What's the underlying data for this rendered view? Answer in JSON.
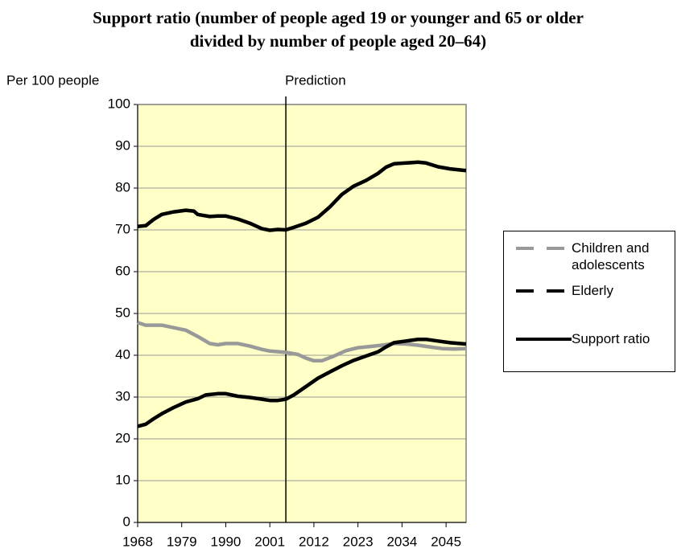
{
  "chart_data": {
    "type": "line",
    "title": "Support ratio (number of people aged 19 or younger and 65 or older divided by number of people aged 20–64)",
    "y_label": "Per 100 people",
    "annotation": "Prediction",
    "annotation_x": 2005,
    "xlim": [
      1968,
      2050
    ],
    "xticks": [
      1968,
      1979,
      1990,
      2001,
      2012,
      2023,
      2034,
      2045
    ],
    "ylim": [
      0,
      100
    ],
    "yticks": [
      0,
      10,
      20,
      30,
      40,
      50,
      60,
      70,
      80,
      90,
      100
    ],
    "grid": true,
    "legend": "right",
    "series": [
      {
        "name": "Children and adolescents",
        "color": "#999999",
        "x": [
          1968,
          1970,
          1974,
          1977,
          1980,
          1983,
          1986,
          1988,
          1990,
          1993,
          1996,
          1999,
          2001,
          2005,
          2008,
          2010,
          2012,
          2014,
          2017,
          2020,
          2023,
          2026,
          2029,
          2032,
          2035,
          2038,
          2041,
          2044,
          2047,
          2050
        ],
        "values": [
          47.8,
          47.2,
          47.2,
          46.6,
          46,
          44.5,
          42.8,
          42.5,
          42.8,
          42.8,
          42.2,
          41.4,
          41,
          40.7,
          40.2,
          39.3,
          38.7,
          38.7,
          39.8,
          41.1,
          41.8,
          42.1,
          42.4,
          42.8,
          42.7,
          42.4,
          42,
          41.6,
          41.5,
          41.6
        ]
      },
      {
        "name": "Elderly",
        "color": "#000000",
        "x": [
          1968,
          1970,
          1972,
          1974,
          1977,
          1980,
          1983,
          1985,
          1988,
          1990,
          1993,
          1996,
          1999,
          2001,
          2003,
          2005,
          2007,
          2010,
          2013,
          2016,
          2019,
          2022,
          2025,
          2028,
          2030,
          2032,
          2035,
          2038,
          2040,
          2043,
          2046,
          2050
        ],
        "values": [
          23,
          23.5,
          24.8,
          26,
          27.5,
          28.8,
          29.6,
          30.5,
          30.8,
          30.8,
          30.2,
          29.9,
          29.5,
          29.2,
          29.2,
          29.5,
          30.5,
          32.5,
          34.5,
          36,
          37.5,
          38.8,
          39.8,
          40.8,
          42,
          43,
          43.4,
          43.8,
          43.8,
          43.4,
          43,
          42.7
        ]
      },
      {
        "name": "Support ratio",
        "color": "#000000",
        "x": [
          1968,
          1970,
          1972,
          1974,
          1977,
          1980,
          1982,
          1983,
          1986,
          1988,
          1990,
          1993,
          1996,
          1999,
          2001,
          2003,
          2005,
          2007,
          2010,
          2013,
          2016,
          2019,
          2022,
          2025,
          2028,
          2030,
          2032,
          2035,
          2038,
          2040,
          2043,
          2046,
          2050
        ],
        "values": [
          70.8,
          71,
          72.5,
          73.7,
          74.3,
          74.7,
          74.5,
          73.7,
          73.2,
          73.3,
          73.3,
          72.6,
          71.6,
          70.3,
          69.9,
          70.1,
          70,
          70.6,
          71.6,
          73,
          75.5,
          78.5,
          80.5,
          81.8,
          83.5,
          85,
          85.8,
          86,
          86.2,
          86,
          85.1,
          84.6,
          84.2
        ]
      }
    ]
  }
}
